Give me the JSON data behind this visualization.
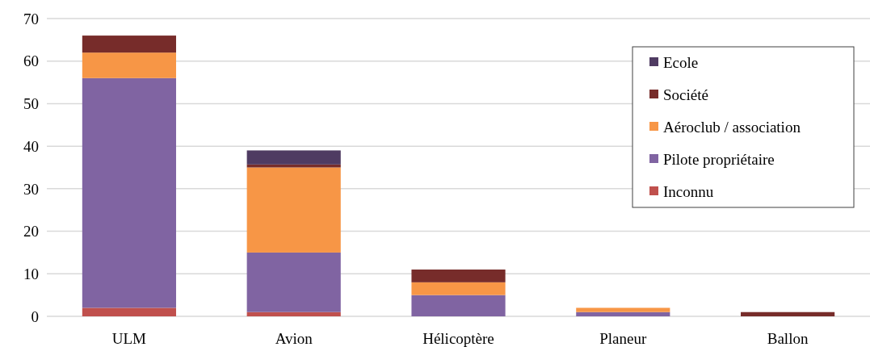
{
  "chart_data": {
    "type": "bar",
    "stacked": true,
    "categories": [
      "ULM",
      "Avion",
      "Hélicoptère",
      "Planeur",
      "Ballon"
    ],
    "series": [
      {
        "name": "Inconnu",
        "color": "#c0504d",
        "values": [
          2,
          1,
          0,
          0,
          0
        ]
      },
      {
        "name": "Pilote propriétaire",
        "color": "#8064a2",
        "values": [
          54,
          14,
          5,
          1,
          0
        ]
      },
      {
        "name": "Aéroclub / association",
        "color": "#f79646",
        "values": [
          6,
          20,
          3,
          1,
          0
        ]
      },
      {
        "name": "Société",
        "color": "#772c2a",
        "values": [
          4,
          0.7,
          3,
          0,
          1
        ]
      },
      {
        "name": "Ecole",
        "color": "#4f3b62",
        "values": [
          0,
          3.3,
          0,
          0,
          0
        ]
      }
    ],
    "ylim": [
      0,
      70
    ],
    "yticks": [
      0,
      10,
      20,
      30,
      40,
      50,
      60,
      70
    ],
    "grid": "y",
    "legend": "top right"
  }
}
